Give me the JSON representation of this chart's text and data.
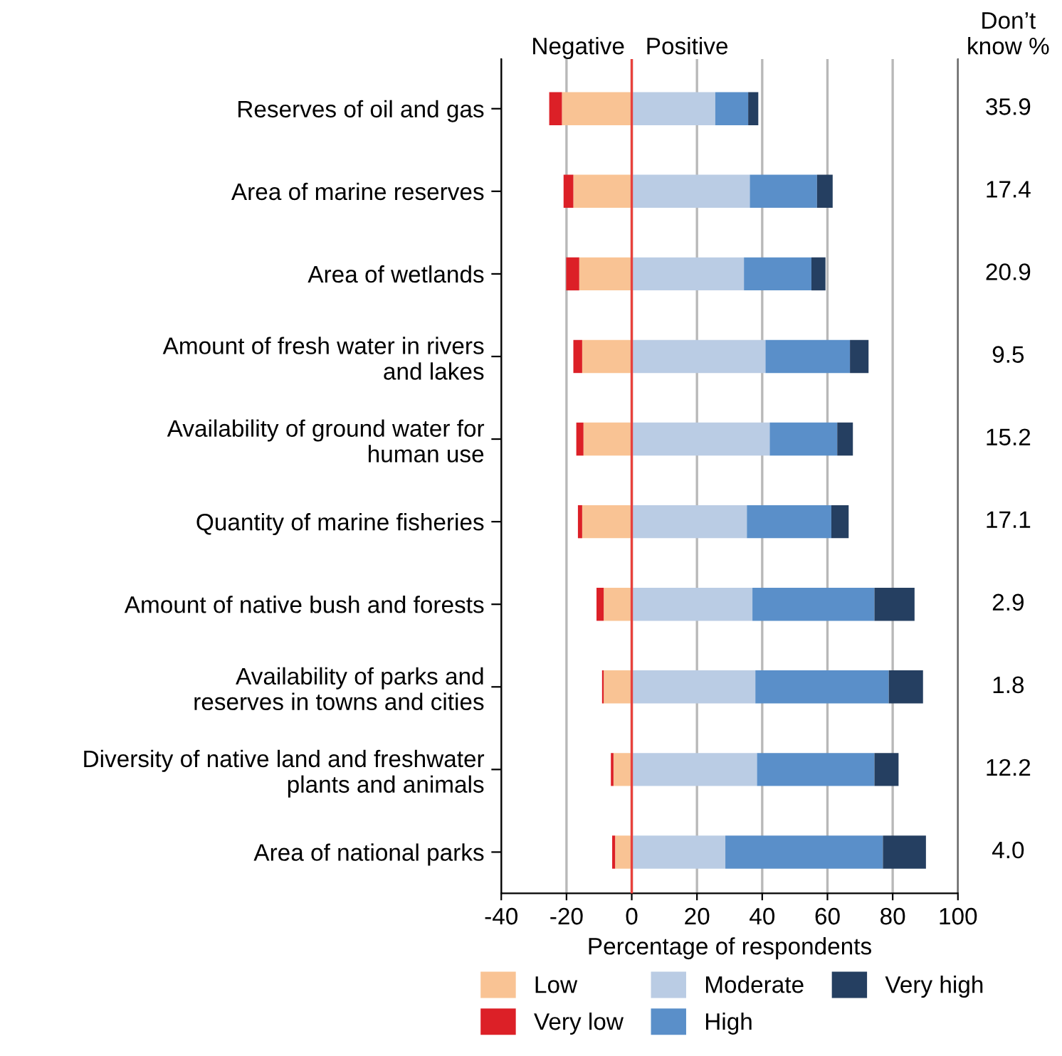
{
  "chart_data": {
    "type": "bar",
    "orientation": "horizontal",
    "stacked": true,
    "xlabel": "Percentage of respondents",
    "categories": [
      "Reserves of oil and gas",
      "Area of marine reserves",
      "Area of wetlands",
      "Amount of fresh water in rivers\nand lakes",
      "Availability of ground water for\nhuman use",
      "Quantity of marine fisheries",
      "Amount of native bush and forests",
      "Availability of parks and\nreserves in towns and cities",
      "Diversity of native land and freshwater\nplants and animals",
      "Area of national parks"
    ],
    "series": [
      {
        "name": "Low",
        "color": "#f9c394",
        "values": [
          -21.4,
          -17.9,
          -16.1,
          -15.2,
          -14.8,
          -15.2,
          -8.6,
          -8.6,
          -5.6,
          -5.1
        ]
      },
      {
        "name": "Very low",
        "color": "#dc2027",
        "values": [
          -3.9,
          -3.0,
          -4.0,
          -2.7,
          -2.2,
          -1.3,
          -2.2,
          -0.5,
          -0.8,
          -0.9
        ]
      },
      {
        "name": "Moderate",
        "color": "#bacce4",
        "values": [
          25.6,
          36.2,
          34.4,
          41.0,
          42.3,
          35.3,
          37.0,
          37.9,
          38.4,
          28.7
        ]
      },
      {
        "name": "High",
        "color": "#5a8fc9",
        "values": [
          10.1,
          20.6,
          20.7,
          25.9,
          20.7,
          25.9,
          37.4,
          40.9,
          36.0,
          48.3
        ]
      },
      {
        "name": "Very high",
        "color": "#253f61",
        "values": [
          3.1,
          4.8,
          4.3,
          5.7,
          4.8,
          5.3,
          12.3,
          10.5,
          7.4,
          13.2
        ]
      }
    ],
    "xlim": [
      -40,
      100
    ],
    "xticks": [
      -40,
      -20,
      0,
      20,
      40,
      60,
      80,
      100
    ],
    "grid": "x",
    "legend": "bottom",
    "ref_lines": [
      {
        "axis": "x",
        "value": 0,
        "color": "#e8413c"
      }
    ],
    "annotations": [
      "Don’t know %",
      "Negative",
      "Positive",
      "35.9",
      "17.4",
      "20.9",
      "9.5",
      "15.2",
      "17.1",
      "2.9",
      "1.8",
      "12.2",
      "4.0"
    ]
  }
}
